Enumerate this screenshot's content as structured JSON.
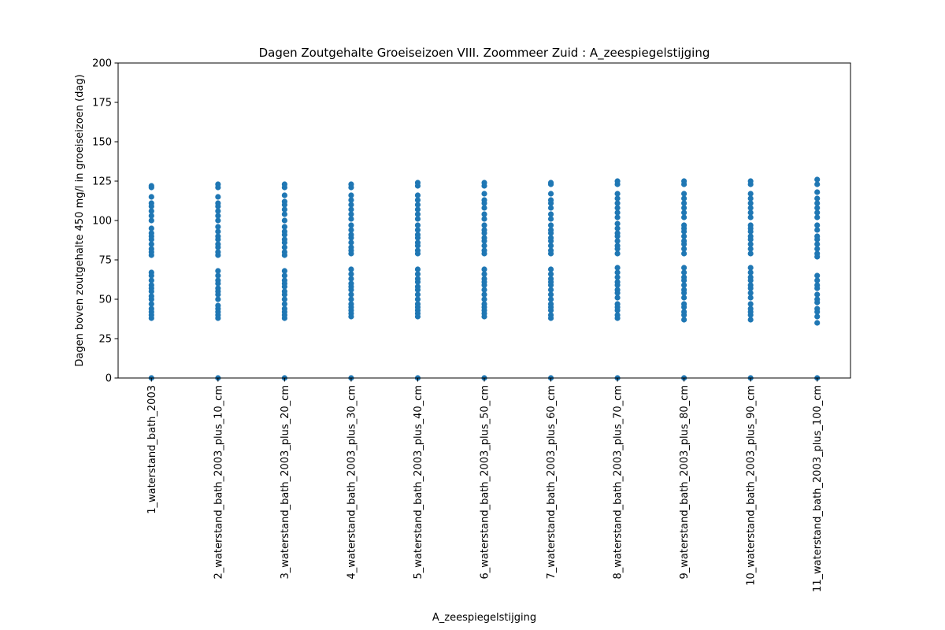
{
  "chart_data": {
    "type": "scatter",
    "title": "Dagen Zoutgehalte Groeiseizoen VIII. Zoommeer Zuid : A_zeespiegelstijging",
    "xlabel": "A_zeespiegelstijging",
    "ylabel": "Dagen boven zoutgehalte 450 mg/l in groeiseizoen (dag)",
    "ylim": [
      0,
      200
    ],
    "yticks": [
      0,
      25,
      50,
      75,
      100,
      125,
      150,
      175,
      200
    ],
    "grid": false,
    "marker_color": "#1f77b4",
    "categories": [
      "1_waterstand_bath_2003",
      "2_waterstand_bath_2003_plus_10_cm",
      "3_waterstand_bath_2003_plus_20_cm",
      "4_waterstand_bath_2003_plus_30_cm",
      "5_waterstand_bath_2003_plus_40_cm",
      "6_waterstand_bath_2003_plus_50_cm",
      "7_waterstand_bath_2003_plus_60_cm",
      "8_waterstand_bath_2003_plus_70_cm",
      "9_waterstand_bath_2003_plus_80_cm",
      "10_waterstand_bath_2003_plus_90_cm",
      "11_waterstand_bath_2003_plus_100_cm"
    ],
    "values": [
      [
        0,
        38,
        40,
        42,
        44,
        47,
        50,
        52,
        55,
        57,
        59,
        62,
        65,
        67,
        78,
        80,
        82,
        85,
        88,
        90,
        92,
        95,
        100,
        103,
        106,
        109,
        111,
        115,
        121,
        122
      ],
      [
        0,
        38,
        40,
        42,
        44,
        46,
        50,
        53,
        55,
        57,
        60,
        62,
        65,
        68,
        78,
        80,
        83,
        85,
        88,
        90,
        93,
        96,
        100,
        103,
        106,
        109,
        111,
        115,
        121,
        123
      ],
      [
        0,
        38,
        40,
        42,
        44,
        47,
        50,
        53,
        55,
        58,
        60,
        62,
        65,
        68,
        78,
        80,
        83,
        86,
        88,
        91,
        93,
        96,
        100,
        104,
        107,
        110,
        112,
        116,
        121,
        123
      ],
      [
        0,
        39,
        41,
        43,
        45,
        47,
        50,
        53,
        56,
        58,
        60,
        63,
        66,
        69,
        79,
        81,
        83,
        86,
        89,
        91,
        94,
        97,
        101,
        104,
        107,
        110,
        113,
        116,
        121,
        123
      ],
      [
        0,
        39,
        41,
        43,
        45,
        47,
        50,
        53,
        56,
        58,
        61,
        63,
        66,
        69,
        79,
        81,
        84,
        86,
        89,
        91,
        94,
        97,
        101,
        104,
        107,
        110,
        113,
        116,
        122,
        124
      ],
      [
        0,
        39,
        41,
        43,
        45,
        47,
        50,
        53,
        56,
        59,
        61,
        63,
        66,
        69,
        79,
        81,
        84,
        87,
        89,
        92,
        94,
        97,
        101,
        104,
        108,
        111,
        113,
        117,
        122,
        124
      ],
      [
        0,
        38,
        40,
        43,
        45,
        47,
        50,
        53,
        56,
        59,
        61,
        63,
        66,
        69,
        79,
        81,
        84,
        87,
        89,
        92,
        94,
        97,
        101,
        104,
        108,
        111,
        113,
        117,
        123,
        124
      ],
      [
        0,
        38,
        40,
        43,
        45,
        47,
        51,
        54,
        56,
        59,
        61,
        64,
        67,
        70,
        79,
        82,
        84,
        87,
        90,
        92,
        95,
        98,
        102,
        105,
        108,
        111,
        114,
        117,
        123,
        125
      ],
      [
        0,
        37,
        40,
        42,
        45,
        47,
        51,
        54,
        56,
        59,
        62,
        64,
        67,
        70,
        79,
        82,
        85,
        87,
        90,
        93,
        95,
        97,
        102,
        105,
        108,
        111,
        114,
        117,
        123,
        125
      ],
      [
        0,
        37,
        40,
        42,
        44,
        47,
        51,
        54,
        57,
        59,
        62,
        64,
        67,
        70,
        79,
        82,
        85,
        88,
        90,
        93,
        95,
        97,
        102,
        105,
        108,
        111,
        114,
        117,
        123,
        125
      ],
      [
        0,
        35,
        39,
        42,
        44,
        48,
        50,
        53,
        57,
        59,
        62,
        65,
        77,
        79,
        82,
        85,
        88,
        90,
        94,
        97,
        102,
        105,
        108,
        111,
        114,
        118,
        123,
        126
      ]
    ]
  }
}
